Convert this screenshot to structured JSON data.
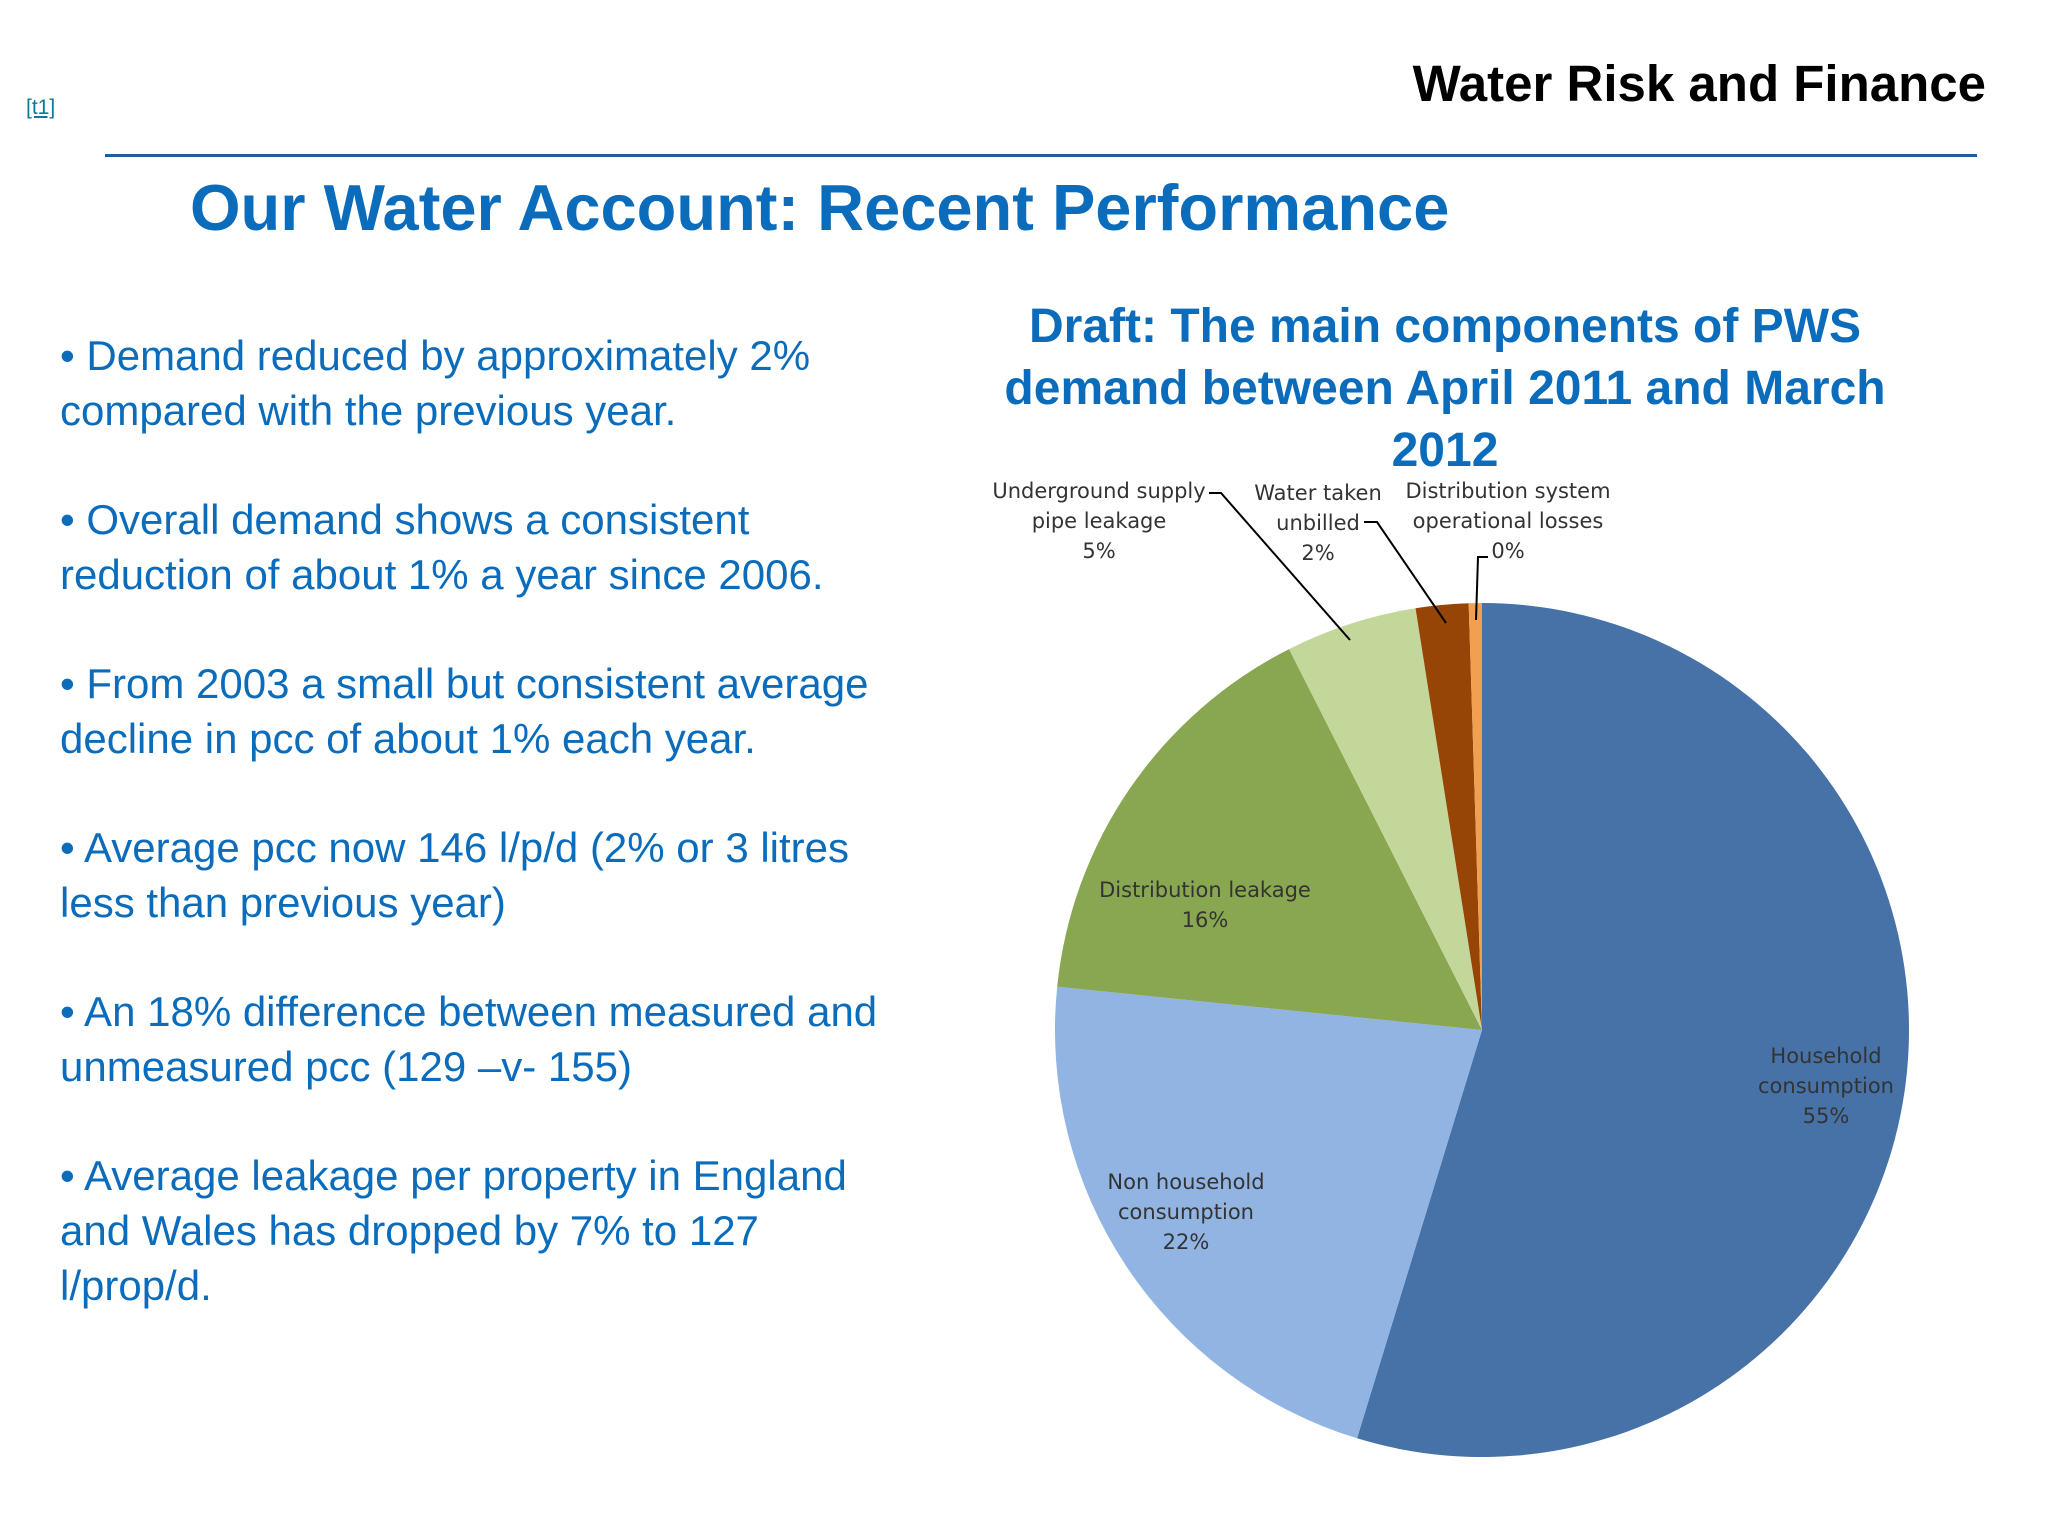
{
  "header": {
    "tracker_ref": "[t1]",
    "brand": "Water Risk and Finance",
    "title": "Our Water Account: Recent Performance"
  },
  "bullets": [
    "• Demand reduced by approximately 2% compared with the previous year.",
    "• Overall demand shows a consistent reduction of about 1% a year since 2006.",
    "• From 2003 a small but consistent average decline in pcc of about 1% each year.",
    "• Average pcc now 146 l/p/d (2% or 3 litres less than previous year)",
    "• An 18% difference between measured and unmeasured pcc  (129 –v- 155)",
    "• Average leakage per property in England and Wales has dropped by 7% to 127 l/prop/d."
  ],
  "chart_data": {
    "type": "pie",
    "title": "Draft: The main components of PWS demand between April 2011 and March 2012",
    "start": "12 o'clock",
    "direction": "clockwise",
    "slices": [
      {
        "name": "Household consumption",
        "value": 55,
        "label_lines": [
          "Household",
          "consumption",
          "55%"
        ],
        "color": "#4672a7"
      },
      {
        "name": "Non household consumption",
        "value": 22,
        "label_lines": [
          "Non household",
          "consumption",
          "22%"
        ],
        "color": "#91b4e3"
      },
      {
        "name": "Distribution leakage",
        "value": 16,
        "label_lines": [
          "Distribution leakage",
          "16%"
        ],
        "color": "#89a651"
      },
      {
        "name": "Underground supply pipe leakage",
        "value": 5,
        "label_lines": [
          "Underground supply",
          "pipe leakage",
          "5%"
        ],
        "color": "#c4d79b"
      },
      {
        "name": "Water taken unbilled",
        "value": 2,
        "label_lines": [
          "Water taken",
          "unbilled",
          "2%"
        ],
        "color": "#974506"
      },
      {
        "name": "Distribution system operational losses",
        "value": 0.5,
        "label_lines": [
          "Distribution system",
          "operational losses",
          "0%"
        ],
        "color": "#f0a050"
      }
    ]
  }
}
